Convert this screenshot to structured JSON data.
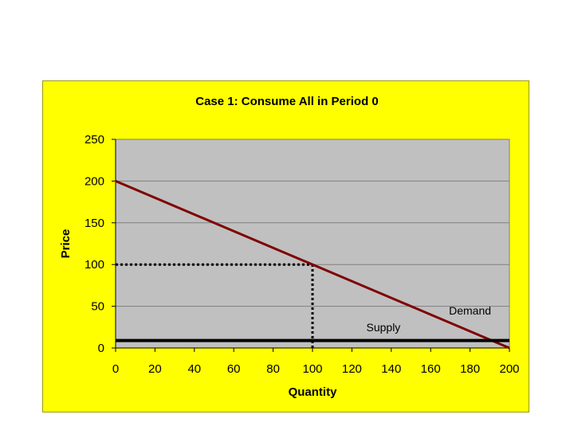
{
  "chart_data": {
    "type": "line",
    "title": "Case 1: Consume All in Period 0",
    "xlabel": "Quantity",
    "ylabel": "Price",
    "xlim": [
      0,
      200
    ],
    "ylim": [
      0,
      250
    ],
    "xticks": [
      0,
      20,
      40,
      60,
      80,
      100,
      120,
      140,
      160,
      180,
      200
    ],
    "yticks": [
      0,
      50,
      100,
      150,
      200,
      250
    ],
    "grid": "horizontal",
    "legend": "none",
    "series": [
      {
        "name": "Demand",
        "color": "#800000",
        "x": [
          0,
          200
        ],
        "y": [
          200,
          0
        ]
      },
      {
        "name": "Supply",
        "color": "#000000",
        "x": [
          0,
          200
        ],
        "y": [
          9,
          9
        ]
      }
    ],
    "guides": [
      {
        "style": "dotted",
        "x": [
          0,
          100
        ],
        "y": [
          100,
          100
        ]
      },
      {
        "style": "dotted",
        "x": [
          100,
          100
        ],
        "y": [
          0,
          100
        ]
      }
    ],
    "annotations": [
      {
        "text": "Demand",
        "x": 180,
        "y": 40
      },
      {
        "text": "Supply",
        "x": 136,
        "y": 20
      }
    ],
    "colors": {
      "background": "#ffff00",
      "plot_area": "#c0c0c0",
      "gridline": "#808080"
    }
  }
}
